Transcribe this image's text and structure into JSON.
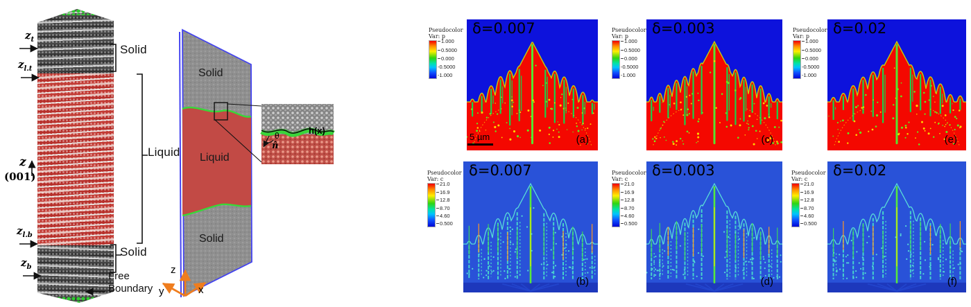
{
  "figure": {
    "md_panel": {
      "markers": [
        {
          "base": "z",
          "sub": "t"
        },
        {
          "base": "z",
          "sub": "l.t"
        },
        {
          "base": "z",
          "sub": "l.b"
        },
        {
          "base": "z",
          "sub": "b"
        }
      ],
      "axis": {
        "base": "z",
        "plane": "(001)"
      },
      "labels": {
        "solid_top": "Solid",
        "liquid": "Liquid",
        "solid_bottom": "Solid",
        "free_line1": "Free",
        "free_line2": "Boundary"
      }
    },
    "schematic": {
      "labels": {
        "solid_top": "Solid",
        "liquid": "Liquid",
        "solid_bottom": "Solid"
      },
      "inset": {
        "height_function": "h(x)",
        "angle": "θ",
        "normal": "n̂"
      },
      "axes": {
        "x": "x",
        "y": "y",
        "z": "z"
      }
    },
    "simulation": {
      "legend_p": {
        "title": "Pseudocolor",
        "var": "Var: p",
        "ticks": [
          "1.000",
          "0.5000",
          "0.000",
          "-0.5000",
          "-1.000"
        ]
      },
      "legend_c": {
        "title": "Pseudocolor",
        "var": "Var: c",
        "ticks": [
          "21.0",
          "16.9",
          "12.8",
          "8.70",
          "4.60",
          "0.500"
        ]
      },
      "scale_bar": "5 µm",
      "panels": [
        {
          "id": "a",
          "delta": "δ=0.007",
          "letter": "(a)",
          "field": "p"
        },
        {
          "id": "c",
          "delta": "δ=0.003",
          "letter": "(c)",
          "field": "p"
        },
        {
          "id": "e",
          "delta": "δ=0.02",
          "letter": "(e)",
          "field": "p"
        },
        {
          "id": "b",
          "delta": "δ=0.007",
          "letter": "(b)",
          "field": "c"
        },
        {
          "id": "d",
          "delta": "δ=0.003",
          "letter": "(d)",
          "field": "c"
        },
        {
          "id": "f",
          "delta": "δ=0.02",
          "letter": "(f)",
          "field": "c"
        }
      ]
    },
    "colors": {
      "solid_gray": "#8f8f8f",
      "liquid_red": "#c24a45",
      "interface_green": "#38d838",
      "slab_border_blue": "#4343f0",
      "axes_orange": "#ef7d1e",
      "field_red": "#f40800",
      "field_background_blue_p": "#0d12dc",
      "field_background_blue_c": "#2952d8",
      "spine_green": "#19d24a"
    }
  }
}
